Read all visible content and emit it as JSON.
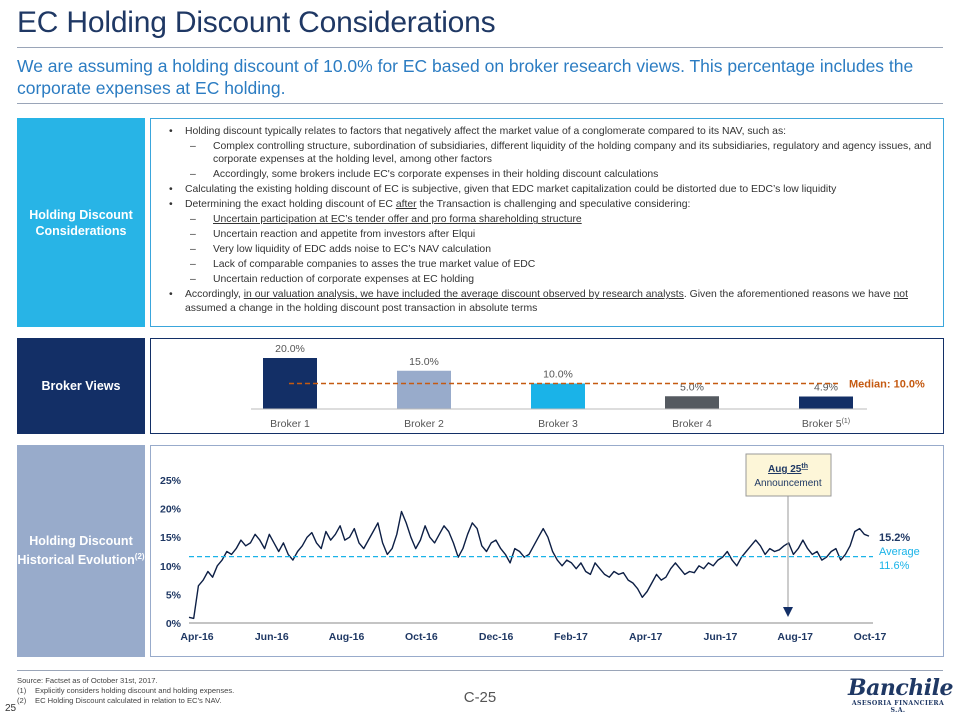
{
  "header": {
    "title": "EC Holding Discount Considerations",
    "subtitle": "We are assuming a holding discount of 10.0% for EC based on broker research views. This percentage includes the corporate expenses at EC holding."
  },
  "sections": {
    "considerations_label": "Holding Discount Considerations",
    "broker_label": "Broker Views",
    "historical_label": "Holding Discount Historical Evolution",
    "historical_note": "(2)"
  },
  "considerations": {
    "b1": "Holding discount typically relates to factors that negatively affect the market value of a conglomerate compared to its NAV, such as:",
    "b1_s1": "Complex controlling structure, subordination of subsidiaries, different liquidity of the holding company and its subsidiaries, regulatory and agency issues, and corporate expenses at the holding level, among other factors",
    "b1_s2": "Accordingly, some brokers include EC's corporate expenses in their holding discount calculations",
    "b2": "Calculating the existing holding discount of EC is subjective, given that EDC market capitalization could be distorted due to EDC’s low liquidity",
    "b3_a": "Determining the exact holding discount of EC ",
    "b3_u": "after",
    "b3_b": " the Transaction is challenging and speculative considering:",
    "b3_s1": "Uncertain participation at EC’s tender offer and pro forma shareholding structure",
    "b3_s2": "Uncertain reaction and appetite from investors after Elqui",
    "b3_s3": "Very low liquidity of EDC adds noise to EC’s NAV calculation",
    "b3_s4": "Lack of comparable companies to asses the true market value of EDC",
    "b3_s5": "Uncertain reduction of corporate expenses at EC holding",
    "b4_a": "Accordingly, ",
    "b4_u": "in our valuation analysis, we have included the average discount observed by research analysts",
    "b4_b": ". Given the aforementioned reasons we have ",
    "b4_u2": "not",
    "b4_c": " assumed a change in the holding discount post transaction in absolute terms"
  },
  "chart_data": [
    {
      "type": "bar",
      "title": "Broker Views",
      "categories": [
        "Broker 1",
        "Broker 2",
        "Broker 3",
        "Broker 4",
        "Broker 5"
      ],
      "category_notes": [
        "",
        "",
        "",
        "",
        "(1)"
      ],
      "values": [
        20.0,
        15.0,
        10.0,
        5.0,
        4.9
      ],
      "value_labels": [
        "20.0%",
        "15.0%",
        "10.0%",
        "5.0%",
        "4.9%"
      ],
      "colors": [
        "#132f66",
        "#98abcb",
        "#1ab3e8",
        "#555a60",
        "#132f66"
      ],
      "median_value": 10.0,
      "median_label": "Median: 10.0%",
      "median_color": "#c55a11",
      "ylim": [
        0,
        20
      ]
    },
    {
      "type": "line",
      "title": "Holding Discount Historical Evolution",
      "xlabel": "",
      "ylabel": "",
      "ylim": [
        0,
        25
      ],
      "yticks": [
        "0%",
        "5%",
        "10%",
        "15%",
        "20%",
        "25%"
      ],
      "xticks": [
        "Apr-16",
        "Jun-16",
        "Aug-16",
        "Oct-16",
        "Dec-16",
        "Feb-17",
        "Apr-17",
        "Jun-17",
        "Aug-17",
        "Oct-17"
      ],
      "series": [
        {
          "name": "Holding discount",
          "color": "#0d1f45",
          "x_start": "Apr-16",
          "x_end": "Oct-17",
          "values": [
            1.0,
            0.8,
            6.5,
            7.5,
            9.0,
            8.0,
            10.0,
            11.0,
            12.5,
            12.0,
            13.0,
            14.5,
            13.5,
            14.0,
            15.5,
            14.5,
            13.0,
            15.5,
            14.0,
            12.5,
            14.0,
            12.0,
            11.0,
            12.5,
            13.5,
            15.0,
            15.8,
            14.0,
            13.0,
            16.0,
            14.5,
            15.5,
            17.0,
            14.5,
            15.0,
            16.5,
            14.0,
            13.0,
            14.5,
            16.0,
            17.5,
            14.0,
            12.0,
            13.0,
            15.5,
            19.5,
            17.5,
            15.0,
            13.0,
            14.5,
            17.0,
            15.0,
            14.0,
            15.5,
            17.0,
            16.0,
            14.0,
            11.5,
            13.0,
            15.5,
            17.5,
            16.5,
            13.5,
            12.5,
            14.0,
            14.5,
            13.0,
            12.0,
            10.5,
            13.0,
            12.5,
            11.5,
            12.0,
            13.5,
            15.0,
            16.5,
            15.0,
            12.5,
            11.0,
            10.0,
            11.0,
            10.5,
            9.5,
            10.5,
            9.0,
            8.5,
            10.5,
            9.5,
            8.5,
            8.0,
            9.0,
            8.5,
            8.8,
            7.5,
            7.0,
            6.0,
            4.5,
            5.5,
            7.0,
            8.5,
            7.5,
            8.0,
            9.5,
            10.5,
            9.5,
            8.5,
            9.0,
            8.8,
            10.0,
            9.5,
            10.5,
            10.0,
            11.0,
            11.5,
            12.5,
            11.0,
            10.0,
            11.5,
            12.5,
            13.5,
            14.5,
            13.5,
            12.0,
            13.0,
            12.5,
            12.8,
            13.5,
            14.0,
            12.0,
            13.0,
            14.5,
            13.0,
            12.0,
            12.5,
            11.0,
            11.5,
            12.5,
            13.0,
            11.0,
            12.0,
            13.5,
            16.0,
            16.5,
            15.5,
            15.2
          ]
        },
        {
          "name": "Average",
          "color": "#1ab3e8",
          "constant": 11.6
        }
      ],
      "annotations": {
        "event_label_1": "Aug 25",
        "event_label_sup": "th",
        "event_label_2": "Announcement",
        "last_value_label": "15.2%",
        "average_label": "Average",
        "average_value_label": "11.6%"
      }
    }
  ],
  "footer": {
    "source": "Source: Factset as of October 31st, 2017.",
    "note1_num": "(1)",
    "note1": "Explicitly considers holding discount and holding expenses.",
    "note2_num": "(2)",
    "note2": "EC Holding Discount calculated in relation to EC’s NAV.",
    "page_number": "25",
    "page_code": "C-25",
    "logo_name": "Banchile",
    "logo_sub": "ASESORIA FINANCIERA S.A."
  }
}
